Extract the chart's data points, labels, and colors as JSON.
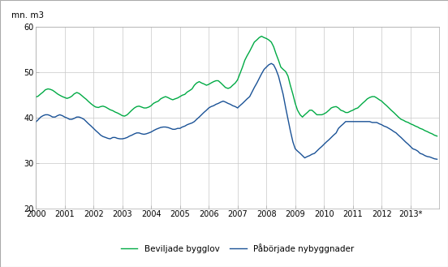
{
  "ylabel": "mn. m3",
  "ylim": [
    20,
    60
  ],
  "yticks": [
    20,
    30,
    40,
    50,
    60
  ],
  "xtick_labels": [
    "2000",
    "2001",
    "2002",
    "2003",
    "2004",
    "2005",
    "2006",
    "2007",
    "2008",
    "2009",
    "2010",
    "2011",
    "2012",
    "2013*"
  ],
  "xtick_positions": [
    2000,
    2001,
    2002,
    2003,
    2004,
    2005,
    2006,
    2007,
    2008,
    2009,
    2010,
    2011,
    2012,
    2013
  ],
  "green_color": "#00aa44",
  "blue_color": "#1a5296",
  "legend_green": "Beviljade bygglov",
  "legend_blue": "Påbörjade nybyggnader",
  "background_color": "#ffffff",
  "grid_color": "#c8c8c8",
  "green_data": [
    [
      2000.0,
      44.5
    ],
    [
      2000.08,
      44.7
    ],
    [
      2000.17,
      45.2
    ],
    [
      2000.25,
      45.6
    ],
    [
      2000.33,
      46.1
    ],
    [
      2000.42,
      46.3
    ],
    [
      2000.5,
      46.2
    ],
    [
      2000.58,
      46.0
    ],
    [
      2000.67,
      45.6
    ],
    [
      2000.75,
      45.2
    ],
    [
      2000.83,
      44.9
    ],
    [
      2000.92,
      44.6
    ],
    [
      2001.0,
      44.4
    ],
    [
      2001.08,
      44.2
    ],
    [
      2001.17,
      44.4
    ],
    [
      2001.25,
      44.7
    ],
    [
      2001.33,
      45.2
    ],
    [
      2001.42,
      45.5
    ],
    [
      2001.5,
      45.3
    ],
    [
      2001.58,
      44.9
    ],
    [
      2001.67,
      44.4
    ],
    [
      2001.75,
      44.0
    ],
    [
      2001.83,
      43.5
    ],
    [
      2001.92,
      43.0
    ],
    [
      2002.0,
      42.6
    ],
    [
      2002.08,
      42.3
    ],
    [
      2002.17,
      42.2
    ],
    [
      2002.25,
      42.4
    ],
    [
      2002.33,
      42.5
    ],
    [
      2002.42,
      42.3
    ],
    [
      2002.5,
      42.0
    ],
    [
      2002.58,
      41.7
    ],
    [
      2002.67,
      41.5
    ],
    [
      2002.75,
      41.2
    ],
    [
      2002.83,
      41.0
    ],
    [
      2002.92,
      40.7
    ],
    [
      2003.0,
      40.4
    ],
    [
      2003.08,
      40.3
    ],
    [
      2003.17,
      40.6
    ],
    [
      2003.25,
      41.1
    ],
    [
      2003.33,
      41.6
    ],
    [
      2003.42,
      42.1
    ],
    [
      2003.5,
      42.4
    ],
    [
      2003.58,
      42.5
    ],
    [
      2003.67,
      42.3
    ],
    [
      2003.75,
      42.1
    ],
    [
      2003.83,
      42.1
    ],
    [
      2003.92,
      42.3
    ],
    [
      2004.0,
      42.6
    ],
    [
      2004.08,
      43.1
    ],
    [
      2004.17,
      43.4
    ],
    [
      2004.25,
      43.6
    ],
    [
      2004.33,
      44.1
    ],
    [
      2004.42,
      44.4
    ],
    [
      2004.5,
      44.6
    ],
    [
      2004.58,
      44.4
    ],
    [
      2004.67,
      44.1
    ],
    [
      2004.75,
      43.9
    ],
    [
      2004.83,
      44.1
    ],
    [
      2004.92,
      44.3
    ],
    [
      2005.0,
      44.6
    ],
    [
      2005.08,
      44.9
    ],
    [
      2005.17,
      45.1
    ],
    [
      2005.25,
      45.6
    ],
    [
      2005.33,
      45.9
    ],
    [
      2005.42,
      46.3
    ],
    [
      2005.5,
      47.1
    ],
    [
      2005.58,
      47.6
    ],
    [
      2005.67,
      47.9
    ],
    [
      2005.75,
      47.6
    ],
    [
      2005.83,
      47.4
    ],
    [
      2005.92,
      47.1
    ],
    [
      2006.0,
      47.3
    ],
    [
      2006.08,
      47.6
    ],
    [
      2006.17,
      47.9
    ],
    [
      2006.25,
      48.1
    ],
    [
      2006.33,
      48.1
    ],
    [
      2006.42,
      47.6
    ],
    [
      2006.5,
      47.1
    ],
    [
      2006.58,
      46.6
    ],
    [
      2006.67,
      46.4
    ],
    [
      2006.75,
      46.6
    ],
    [
      2006.83,
      47.1
    ],
    [
      2006.92,
      47.6
    ],
    [
      2007.0,
      48.3
    ],
    [
      2007.08,
      49.6
    ],
    [
      2007.17,
      51.1
    ],
    [
      2007.25,
      52.6
    ],
    [
      2007.33,
      53.6
    ],
    [
      2007.42,
      54.6
    ],
    [
      2007.5,
      55.6
    ],
    [
      2007.58,
      56.6
    ],
    [
      2007.67,
      57.1
    ],
    [
      2007.75,
      57.6
    ],
    [
      2007.83,
      57.9
    ],
    [
      2007.92,
      57.6
    ],
    [
      2008.0,
      57.4
    ],
    [
      2008.08,
      57.1
    ],
    [
      2008.17,
      56.6
    ],
    [
      2008.25,
      55.6
    ],
    [
      2008.33,
      54.1
    ],
    [
      2008.42,
      52.6
    ],
    [
      2008.5,
      51.1
    ],
    [
      2008.58,
      50.6
    ],
    [
      2008.67,
      50.1
    ],
    [
      2008.75,
      49.1
    ],
    [
      2008.83,
      47.1
    ],
    [
      2008.92,
      45.1
    ],
    [
      2009.0,
      43.1
    ],
    [
      2009.08,
      41.6
    ],
    [
      2009.17,
      40.6
    ],
    [
      2009.25,
      40.1
    ],
    [
      2009.33,
      40.6
    ],
    [
      2009.42,
      41.1
    ],
    [
      2009.5,
      41.6
    ],
    [
      2009.58,
      41.6
    ],
    [
      2009.67,
      41.1
    ],
    [
      2009.75,
      40.6
    ],
    [
      2009.83,
      40.6
    ],
    [
      2009.92,
      40.6
    ],
    [
      2010.0,
      40.8
    ],
    [
      2010.08,
      41.1
    ],
    [
      2010.17,
      41.6
    ],
    [
      2010.25,
      42.1
    ],
    [
      2010.33,
      42.3
    ],
    [
      2010.42,
      42.4
    ],
    [
      2010.5,
      42.1
    ],
    [
      2010.58,
      41.6
    ],
    [
      2010.67,
      41.4
    ],
    [
      2010.75,
      41.1
    ],
    [
      2010.83,
      41.1
    ],
    [
      2010.92,
      41.4
    ],
    [
      2011.0,
      41.6
    ],
    [
      2011.08,
      41.9
    ],
    [
      2011.17,
      42.1
    ],
    [
      2011.25,
      42.6
    ],
    [
      2011.33,
      43.1
    ],
    [
      2011.42,
      43.6
    ],
    [
      2011.5,
      44.1
    ],
    [
      2011.58,
      44.4
    ],
    [
      2011.67,
      44.6
    ],
    [
      2011.75,
      44.6
    ],
    [
      2011.83,
      44.3
    ],
    [
      2011.92,
      43.9
    ],
    [
      2012.0,
      43.6
    ],
    [
      2012.08,
      43.1
    ],
    [
      2012.17,
      42.6
    ],
    [
      2012.25,
      42.1
    ],
    [
      2012.33,
      41.6
    ],
    [
      2012.42,
      41.1
    ],
    [
      2012.5,
      40.6
    ],
    [
      2012.58,
      40.1
    ],
    [
      2012.67,
      39.6
    ],
    [
      2012.75,
      39.4
    ],
    [
      2012.83,
      39.1
    ],
    [
      2012.92,
      38.9
    ],
    [
      2013.0,
      38.6
    ],
    [
      2013.08,
      38.4
    ],
    [
      2013.17,
      38.1
    ],
    [
      2013.25,
      37.9
    ],
    [
      2013.33,
      37.6
    ],
    [
      2013.42,
      37.4
    ],
    [
      2013.5,
      37.1
    ],
    [
      2013.58,
      36.9
    ],
    [
      2013.67,
      36.6
    ],
    [
      2013.75,
      36.4
    ],
    [
      2013.83,
      36.1
    ],
    [
      2013.92,
      35.9
    ]
  ],
  "blue_data": [
    [
      2000.0,
      39.0
    ],
    [
      2000.08,
      39.5
    ],
    [
      2000.17,
      40.1
    ],
    [
      2000.25,
      40.4
    ],
    [
      2000.33,
      40.6
    ],
    [
      2000.42,
      40.6
    ],
    [
      2000.5,
      40.4
    ],
    [
      2000.58,
      40.1
    ],
    [
      2000.67,
      40.1
    ],
    [
      2000.75,
      40.4
    ],
    [
      2000.83,
      40.6
    ],
    [
      2000.92,
      40.4
    ],
    [
      2001.0,
      40.1
    ],
    [
      2001.08,
      39.9
    ],
    [
      2001.17,
      39.6
    ],
    [
      2001.25,
      39.6
    ],
    [
      2001.33,
      39.8
    ],
    [
      2001.42,
      40.1
    ],
    [
      2001.5,
      40.1
    ],
    [
      2001.58,
      39.9
    ],
    [
      2001.67,
      39.6
    ],
    [
      2001.75,
      39.1
    ],
    [
      2001.83,
      38.6
    ],
    [
      2001.92,
      38.1
    ],
    [
      2002.0,
      37.6
    ],
    [
      2002.08,
      37.1
    ],
    [
      2002.17,
      36.6
    ],
    [
      2002.25,
      36.1
    ],
    [
      2002.33,
      35.8
    ],
    [
      2002.42,
      35.6
    ],
    [
      2002.5,
      35.4
    ],
    [
      2002.58,
      35.3
    ],
    [
      2002.67,
      35.6
    ],
    [
      2002.75,
      35.6
    ],
    [
      2002.83,
      35.4
    ],
    [
      2002.92,
      35.3
    ],
    [
      2003.0,
      35.3
    ],
    [
      2003.08,
      35.4
    ],
    [
      2003.17,
      35.6
    ],
    [
      2003.25,
      35.9
    ],
    [
      2003.33,
      36.1
    ],
    [
      2003.42,
      36.4
    ],
    [
      2003.5,
      36.6
    ],
    [
      2003.58,
      36.6
    ],
    [
      2003.67,
      36.4
    ],
    [
      2003.75,
      36.3
    ],
    [
      2003.83,
      36.4
    ],
    [
      2003.92,
      36.6
    ],
    [
      2004.0,
      36.8
    ],
    [
      2004.08,
      37.1
    ],
    [
      2004.17,
      37.4
    ],
    [
      2004.25,
      37.6
    ],
    [
      2004.33,
      37.8
    ],
    [
      2004.42,
      37.9
    ],
    [
      2004.5,
      37.9
    ],
    [
      2004.58,
      37.8
    ],
    [
      2004.67,
      37.6
    ],
    [
      2004.75,
      37.4
    ],
    [
      2004.83,
      37.4
    ],
    [
      2004.92,
      37.6
    ],
    [
      2005.0,
      37.6
    ],
    [
      2005.08,
      37.9
    ],
    [
      2005.17,
      38.1
    ],
    [
      2005.25,
      38.4
    ],
    [
      2005.33,
      38.6
    ],
    [
      2005.42,
      38.8
    ],
    [
      2005.5,
      39.1
    ],
    [
      2005.58,
      39.6
    ],
    [
      2005.67,
      40.1
    ],
    [
      2005.75,
      40.6
    ],
    [
      2005.83,
      41.1
    ],
    [
      2005.92,
      41.6
    ],
    [
      2006.0,
      42.1
    ],
    [
      2006.08,
      42.4
    ],
    [
      2006.17,
      42.6
    ],
    [
      2006.25,
      42.9
    ],
    [
      2006.33,
      43.1
    ],
    [
      2006.42,
      43.4
    ],
    [
      2006.5,
      43.6
    ],
    [
      2006.58,
      43.4
    ],
    [
      2006.67,
      43.1
    ],
    [
      2006.75,
      42.9
    ],
    [
      2006.83,
      42.6
    ],
    [
      2006.92,
      42.4
    ],
    [
      2007.0,
      42.1
    ],
    [
      2007.08,
      42.6
    ],
    [
      2007.17,
      43.1
    ],
    [
      2007.25,
      43.6
    ],
    [
      2007.33,
      44.1
    ],
    [
      2007.42,
      44.6
    ],
    [
      2007.5,
      45.6
    ],
    [
      2007.58,
      46.6
    ],
    [
      2007.67,
      47.6
    ],
    [
      2007.75,
      48.6
    ],
    [
      2007.83,
      49.6
    ],
    [
      2007.92,
      50.6
    ],
    [
      2008.0,
      51.1
    ],
    [
      2008.08,
      51.6
    ],
    [
      2008.17,
      51.9
    ],
    [
      2008.25,
      51.6
    ],
    [
      2008.33,
      50.6
    ],
    [
      2008.42,
      49.1
    ],
    [
      2008.5,
      47.1
    ],
    [
      2008.58,
      45.1
    ],
    [
      2008.67,
      42.1
    ],
    [
      2008.75,
      39.6
    ],
    [
      2008.83,
      37.1
    ],
    [
      2008.92,
      34.6
    ],
    [
      2009.0,
      33.1
    ],
    [
      2009.08,
      32.6
    ],
    [
      2009.17,
      32.1
    ],
    [
      2009.25,
      31.6
    ],
    [
      2009.33,
      31.1
    ],
    [
      2009.42,
      31.4
    ],
    [
      2009.5,
      31.6
    ],
    [
      2009.58,
      31.9
    ],
    [
      2009.67,
      32.1
    ],
    [
      2009.75,
      32.6
    ],
    [
      2009.83,
      33.1
    ],
    [
      2009.92,
      33.6
    ],
    [
      2010.0,
      34.1
    ],
    [
      2010.08,
      34.6
    ],
    [
      2010.17,
      35.1
    ],
    [
      2010.25,
      35.6
    ],
    [
      2010.33,
      36.1
    ],
    [
      2010.42,
      36.6
    ],
    [
      2010.5,
      37.6
    ],
    [
      2010.58,
      38.1
    ],
    [
      2010.67,
      38.6
    ],
    [
      2010.75,
      39.1
    ],
    [
      2010.83,
      39.1
    ],
    [
      2010.92,
      39.1
    ],
    [
      2011.0,
      39.1
    ],
    [
      2011.08,
      39.1
    ],
    [
      2011.17,
      39.1
    ],
    [
      2011.25,
      39.1
    ],
    [
      2011.33,
      39.1
    ],
    [
      2011.42,
      39.1
    ],
    [
      2011.5,
      39.1
    ],
    [
      2011.58,
      39.1
    ],
    [
      2011.67,
      38.9
    ],
    [
      2011.75,
      38.9
    ],
    [
      2011.83,
      38.9
    ],
    [
      2011.92,
      38.6
    ],
    [
      2012.0,
      38.4
    ],
    [
      2012.08,
      38.1
    ],
    [
      2012.17,
      37.9
    ],
    [
      2012.25,
      37.6
    ],
    [
      2012.33,
      37.3
    ],
    [
      2012.42,
      36.9
    ],
    [
      2012.5,
      36.6
    ],
    [
      2012.58,
      36.1
    ],
    [
      2012.67,
      35.6
    ],
    [
      2012.75,
      35.1
    ],
    [
      2012.83,
      34.6
    ],
    [
      2012.92,
      34.1
    ],
    [
      2013.0,
      33.6
    ],
    [
      2013.08,
      33.1
    ],
    [
      2013.17,
      32.9
    ],
    [
      2013.25,
      32.6
    ],
    [
      2013.33,
      32.1
    ],
    [
      2013.42,
      31.9
    ],
    [
      2013.5,
      31.6
    ],
    [
      2013.58,
      31.4
    ],
    [
      2013.67,
      31.3
    ],
    [
      2013.75,
      31.1
    ],
    [
      2013.83,
      30.9
    ],
    [
      2013.92,
      30.8
    ]
  ]
}
